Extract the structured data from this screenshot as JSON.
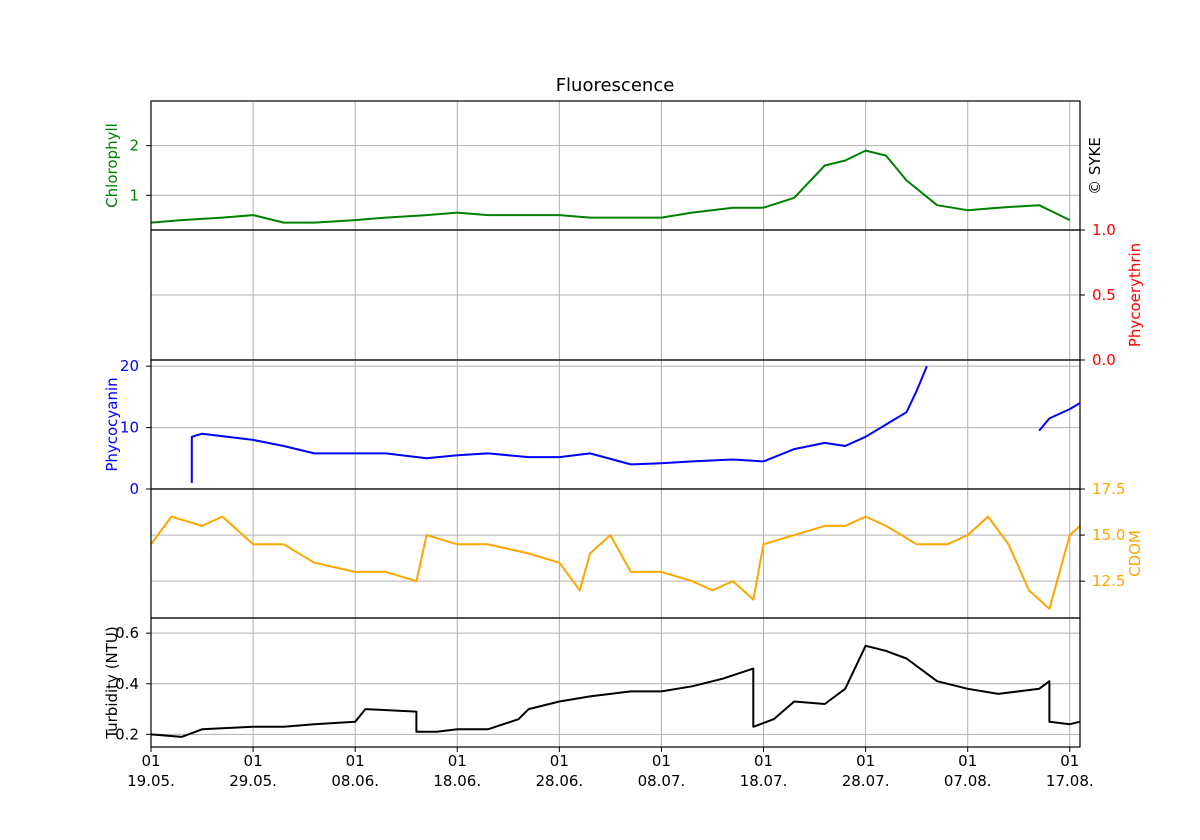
{
  "chart_data": {
    "type": "line",
    "title": "Fluorescence",
    "watermark": "© SYKE",
    "x_axis": {
      "range": [
        "2019-05-19",
        "2019-08-18"
      ],
      "tick_labels": [
        {
          "day": "01",
          "date": "19.05."
        },
        {
          "day": "01",
          "date": "29.05."
        },
        {
          "day": "01",
          "date": "08.06."
        },
        {
          "day": "01",
          "date": "18.06."
        },
        {
          "day": "01",
          "date": "28.06."
        },
        {
          "day": "01",
          "date": "08.07."
        },
        {
          "day": "01",
          "date": "18.07."
        },
        {
          "day": "01",
          "date": "28.07."
        },
        {
          "day": "01",
          "date": "07.08."
        },
        {
          "day": "01",
          "date": "17.08."
        }
      ]
    },
    "grid": true,
    "panels": [
      {
        "name": "chlorophyll",
        "ylabel": "Chlorophyll",
        "color": "#008000",
        "axis_side": "left",
        "ylim": [
          0.3,
          2.9
        ],
        "yticks": [
          1,
          2
        ],
        "ytick_labels": [
          "1",
          "2"
        ],
        "series": {
          "x": [
            "19.05.",
            "22.05.",
            "26.05.",
            "29.05.",
            "01.06.",
            "04.06.",
            "08.06.",
            "11.06.",
            "15.06.",
            "18.06.",
            "21.06.",
            "25.06.",
            "28.06.",
            "01.07.",
            "05.07.",
            "08.07.",
            "11.07.",
            "15.07.",
            "18.07.",
            "21.07.",
            "24.07.",
            "26.07.",
            "28.07.",
            "30.07.",
            "01.08.",
            "04.08.",
            "07.08.",
            "10.08.",
            "14.08.",
            "17.08."
          ],
          "y": [
            0.45,
            0.5,
            0.55,
            0.6,
            0.45,
            0.45,
            0.5,
            0.55,
            0.6,
            0.65,
            0.6,
            0.6,
            0.6,
            0.55,
            0.55,
            0.55,
            0.65,
            0.75,
            0.75,
            0.95,
            1.6,
            1.7,
            1.9,
            1.8,
            1.3,
            0.8,
            0.7,
            0.75,
            0.8,
            0.5
          ]
        }
      },
      {
        "name": "phycoerythrin",
        "ylabel": "Phycoerythrin",
        "color": "#ff0000",
        "axis_side": "right",
        "ylim": [
          0,
          1
        ],
        "yticks": [
          0,
          0.5,
          1
        ],
        "ytick_labels": [
          "0.0",
          "0.5",
          "1.0"
        ],
        "series": {
          "x": [],
          "y": []
        }
      },
      {
        "name": "phycocyanin",
        "ylabel": "Phycocyanin",
        "color": "#0000ff",
        "axis_side": "left",
        "ylim": [
          0,
          21
        ],
        "yticks": [
          0,
          10,
          20
        ],
        "ytick_labels": [
          "0",
          "10",
          "20"
        ],
        "series": {
          "x": [
            "23.05.",
            "23.05.",
            "24.05.",
            "29.05.",
            "01.06.",
            "04.06.",
            "08.06.",
            "11.06.",
            "15.06.",
            "18.06.",
            "21.06.",
            "25.06.",
            "28.06.",
            "01.07.",
            "05.07.",
            "08.07.",
            "11.07.",
            "15.07.",
            "18.07.",
            "21.07.",
            "24.07.",
            "26.07.",
            "28.07.",
            "30.07.",
            "01.08.",
            "02.08.",
            "03.08.",
            null,
            "14.08.",
            "15.08.",
            "17.08.",
            "18.08."
          ],
          "y": [
            1,
            8.5,
            9,
            8,
            7,
            5.8,
            5.8,
            5.8,
            5,
            5.5,
            5.8,
            5.2,
            5.2,
            5.8,
            4,
            4.2,
            4.5,
            4.8,
            4.5,
            6.5,
            7.5,
            7,
            8.5,
            10.5,
            12.5,
            16,
            20,
            null,
            9.5,
            11.5,
            13,
            14
          ]
        }
      },
      {
        "name": "cdom",
        "ylabel": "CDOM",
        "color": "#ffa500",
        "axis_side": "right",
        "ylim": [
          10.5,
          17.5
        ],
        "yticks": [
          12.5,
          15,
          17.5
        ],
        "ytick_labels": [
          "12.5",
          "15.0",
          "17.5"
        ],
        "series": {
          "x": [
            "19.05.",
            "21.05.",
            "24.05.",
            "26.05.",
            "29.05.",
            "01.06.",
            "04.06.",
            "08.06.",
            "11.06.",
            "14.06.",
            "15.06.",
            "18.06.",
            "21.06.",
            "25.06.",
            "28.06.",
            "30.06.",
            "01.07.",
            "03.07.",
            "05.07.",
            "08.07.",
            "11.07.",
            "13.07.",
            "15.07.",
            "17.07.",
            "18.07.",
            "21.07.",
            "24.07.",
            "26.07.",
            "28.07.",
            "30.07.",
            "02.08.",
            "05.08.",
            "07.08.",
            "09.08.",
            "11.08.",
            "13.08.",
            "14.08.",
            "15.08.",
            "17.08.",
            "18.08."
          ],
          "y": [
            14.5,
            16,
            15.5,
            16,
            14.5,
            14.5,
            13.5,
            13,
            13,
            12.5,
            15,
            14.5,
            14.5,
            14,
            13.5,
            12,
            14,
            15,
            13,
            13,
            12.5,
            12,
            12.5,
            11.5,
            14.5,
            15,
            15.5,
            15.5,
            16,
            15.5,
            14.5,
            14.5,
            15,
            16,
            14.5,
            12,
            11.5,
            11,
            15,
            15.5
          ]
        }
      },
      {
        "name": "turbidity",
        "ylabel": "Turbidity (NTU)",
        "color": "#000000",
        "axis_side": "left",
        "ylim": [
          0.15,
          0.66
        ],
        "yticks": [
          0.2,
          0.4,
          0.6
        ],
        "ytick_labels": [
          "0.2",
          "0.4",
          "0.6"
        ],
        "series": {
          "x": [
            "19.05.",
            "22.05.",
            "24.05.",
            "29.05.",
            "01.06.",
            "04.06.",
            "08.06.",
            "09.06.",
            "14.06.",
            "14.06.",
            "16.06.",
            "18.06.",
            "21.06.",
            "24.06.",
            "25.06.",
            "28.06.",
            "01.07.",
            "05.07.",
            "08.07.",
            "11.07.",
            "14.07.",
            "17.07.",
            "17.07.",
            "19.07.",
            "21.07.",
            "24.07.",
            "26.07.",
            "28.07.",
            "30.07.",
            "01.08.",
            "04.08.",
            "07.08.",
            "10.08.",
            "14.08.",
            "15.08.",
            "15.08.",
            "17.08.",
            "18.08."
          ],
          "y": [
            0.2,
            0.19,
            0.22,
            0.23,
            0.23,
            0.24,
            0.25,
            0.3,
            0.29,
            0.21,
            0.21,
            0.22,
            0.22,
            0.26,
            0.3,
            0.33,
            0.35,
            0.37,
            0.37,
            0.39,
            0.42,
            0.46,
            0.23,
            0.26,
            0.33,
            0.32,
            0.38,
            0.55,
            0.53,
            0.5,
            0.41,
            0.38,
            0.36,
            0.38,
            0.41,
            0.25,
            0.24,
            0.25
          ]
        }
      }
    ]
  }
}
